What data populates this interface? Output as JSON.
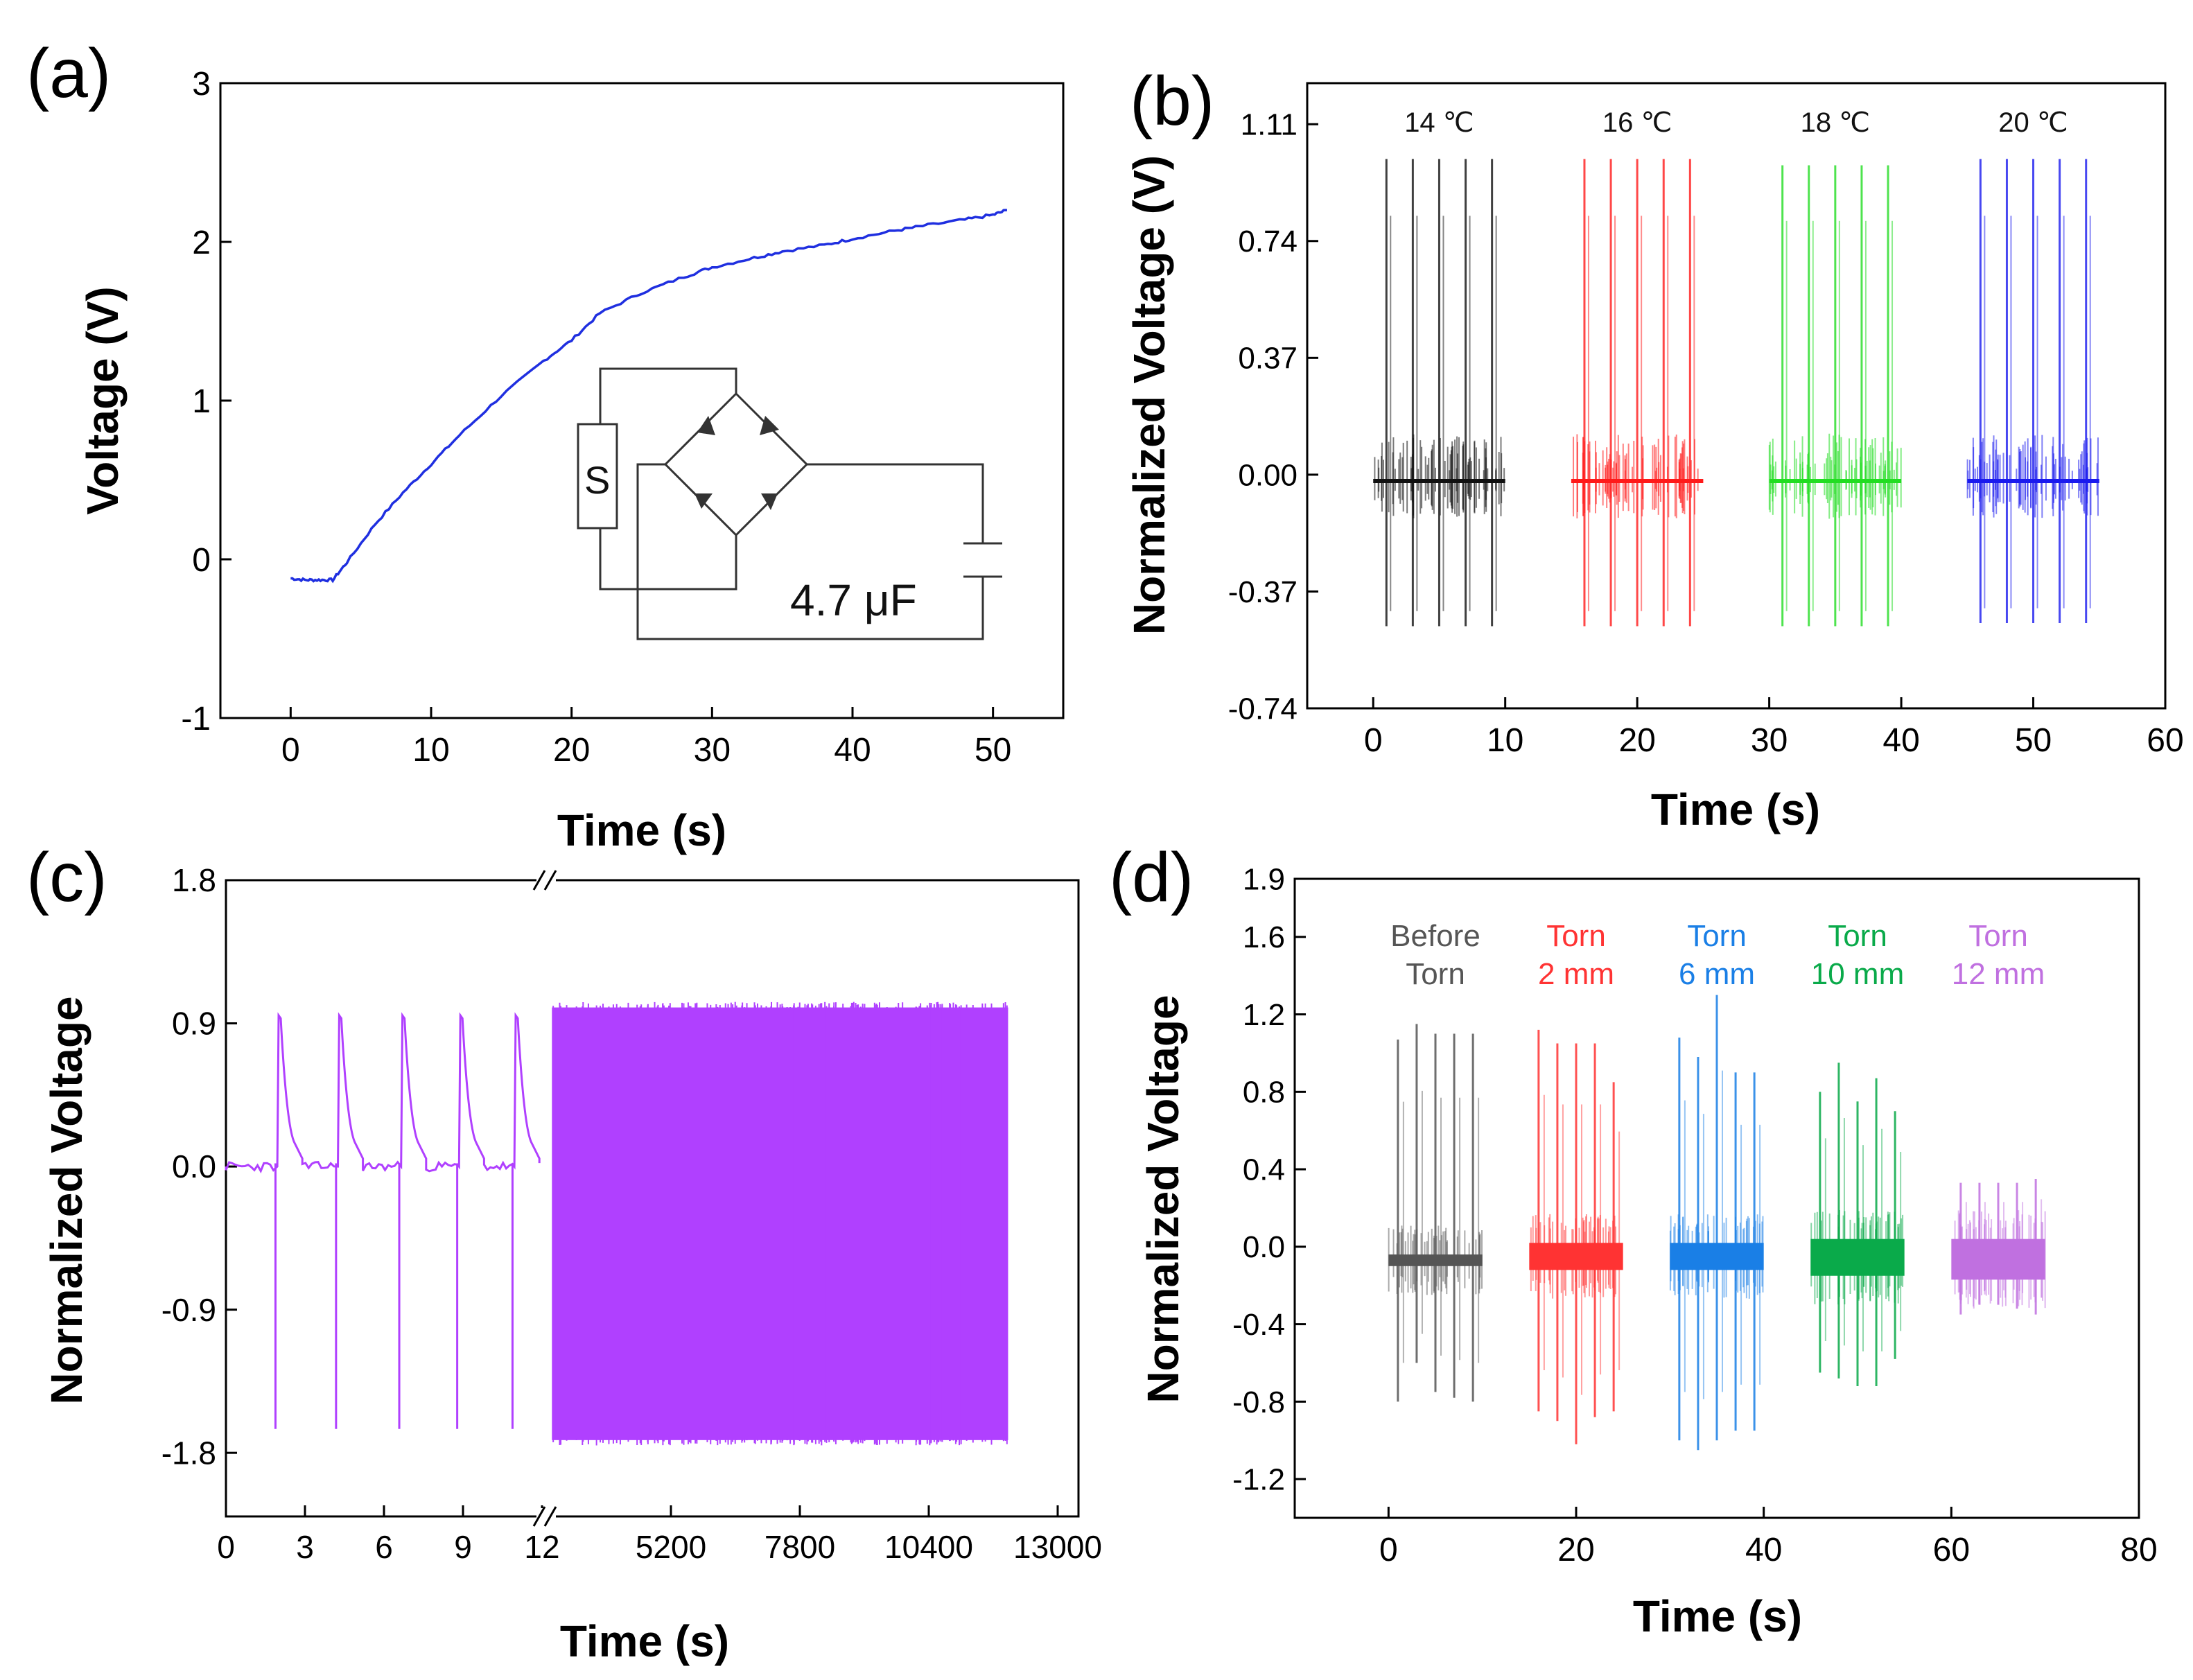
{
  "panel_labels": [
    "(a)",
    "(b)",
    "(c)",
    "(d)"
  ],
  "colors": {
    "a_line": "#1f2fe0",
    "b_14": "#111111",
    "b_16": "#ff1a1a",
    "b_18": "#22dd22",
    "b_20": "#1a1aee",
    "c_trace": "#b040ff",
    "d_before": "#555555",
    "d_2mm": "#ff3333",
    "d_6mm": "#1a7fe6",
    "d_10mm": "#0aaa4a",
    "d_12mm": "#c070e0"
  },
  "chart_data": [
    {
      "panel": "(a)",
      "type": "line",
      "xlabel": "Time (s)",
      "ylabel": "Voltage (V)",
      "xlim": [
        -5,
        55
      ],
      "ylim": [
        -1,
        3
      ],
      "xticks": [
        0,
        10,
        20,
        30,
        40,
        50
      ],
      "yticks": [
        -1,
        0,
        1,
        2,
        3
      ],
      "x": [
        0,
        1,
        2,
        3,
        4,
        6,
        8,
        10,
        12,
        15,
        18,
        20,
        22,
        25,
        28,
        30,
        33,
        35,
        38,
        40,
        43,
        45,
        48,
        50,
        51
      ],
      "y": [
        -0.12,
        -0.13,
        -0.13,
        -0.13,
        -0.02,
        0.22,
        0.42,
        0.6,
        0.78,
        1.03,
        1.25,
        1.38,
        1.55,
        1.68,
        1.78,
        1.84,
        1.9,
        1.94,
        1.98,
        2.02,
        2.07,
        2.1,
        2.14,
        2.17,
        2.2
      ],
      "inset": {
        "type": "circuit",
        "components": [
          "S",
          "bridge-rectifier",
          "capacitor"
        ],
        "capacitor_label": "4.7 μF"
      }
    },
    {
      "panel": "(b)",
      "type": "line",
      "xlabel": "Time (s)",
      "ylabel": "Normalized Voltage (V)",
      "xlim": [
        -5,
        60
      ],
      "ylim": [
        -0.74,
        1.24
      ],
      "xticks": [
        0,
        10,
        20,
        30,
        40,
        50,
        60
      ],
      "yticks": [
        "1.11",
        "0.74",
        "0.37",
        "0.00",
        "-0.37",
        "-0.74"
      ],
      "groups": [
        {
          "label": "14 ℃",
          "x_range": [
            0,
            10
          ],
          "pulse_times": [
            1,
            3,
            5,
            7,
            9
          ],
          "peak": 1.0,
          "trough": -0.48,
          "baseline": -0.02,
          "color_key": "b_14"
        },
        {
          "label": "16 ℃",
          "x_range": [
            15,
            25
          ],
          "pulse_times": [
            16,
            18,
            20,
            22,
            24
          ],
          "peak": 1.0,
          "trough": -0.48,
          "baseline": -0.02,
          "color_key": "b_16"
        },
        {
          "label": "18 ℃",
          "x_range": [
            30,
            40
          ],
          "pulse_times": [
            31,
            33,
            35,
            37,
            39
          ],
          "peak": 0.98,
          "trough": -0.48,
          "baseline": -0.02,
          "color_key": "b_18"
        },
        {
          "label": "20 ℃",
          "x_range": [
            45,
            55
          ],
          "pulse_times": [
            46,
            48,
            50,
            52,
            54
          ],
          "peak": 1.0,
          "trough": -0.47,
          "baseline": -0.02,
          "color_key": "b_20"
        }
      ]
    },
    {
      "panel": "(c)",
      "type": "line",
      "xlabel": "Time (s)",
      "ylabel": "Normalized Voltage",
      "ylim": [
        -2.2,
        1.8
      ],
      "yticks": [
        "1.8",
        "0.9",
        "0.0",
        "-0.9",
        "-1.8"
      ],
      "broken_x_axis": true,
      "segment1": {
        "xlim": [
          0,
          12
        ],
        "xticks": [
          "0",
          "3",
          "6",
          "9",
          "12"
        ],
        "pulse_times": [
          2,
          4.3,
          6.7,
          8.9,
          11
        ],
        "peak": 0.95,
        "trough": -1.65,
        "baseline": 0.0
      },
      "segment2": {
        "xlim": [
          2600,
          13000
        ],
        "xticks": [
          "5200",
          "7800",
          "10400",
          "13000"
        ],
        "band_x": [
          2800,
          12000
        ],
        "band_top": 1.0,
        "band_bottom": -1.72
      }
    },
    {
      "panel": "(d)",
      "type": "line",
      "xlabel": "Time (s)",
      "ylabel": "Normalized Voltage",
      "xlim": [
        -10,
        80
      ],
      "ylim": [
        -1.4,
        1.9
      ],
      "xticks": [
        0,
        20,
        40,
        60,
        80
      ],
      "yticks": [
        "1.9",
        "1.6",
        "1.2",
        "0.8",
        "0.4",
        "0.0",
        "-0.4",
        "-0.8",
        "-1.2"
      ],
      "groups": [
        {
          "label_line1": "Before",
          "label_line2": "Torn",
          "x_range": [
            0,
            10
          ],
          "pulse_times": [
            1,
            3,
            5,
            7,
            9
          ],
          "peaks": [
            1.07,
            1.15,
            1.1,
            1.1,
            1.1
          ],
          "troughs": [
            -0.8,
            -0.6,
            -0.75,
            -0.78,
            -0.8
          ],
          "band": [
            -0.1,
            -0.04
          ],
          "color_key": "d_before"
        },
        {
          "label_line1": "Torn",
          "label_line2": "2 mm",
          "x_range": [
            15,
            25
          ],
          "pulse_times": [
            16,
            18,
            20,
            22,
            24
          ],
          "peaks": [
            1.12,
            1.05,
            1.05,
            1.05,
            0.85
          ],
          "troughs": [
            -0.85,
            -0.9,
            -1.02,
            -0.88,
            -0.85
          ],
          "band": [
            -0.12,
            0.02
          ],
          "color_key": "d_2mm"
        },
        {
          "label_line1": "Torn",
          "label_line2": "6 mm",
          "x_range": [
            30,
            40
          ],
          "pulse_times": [
            31,
            33,
            35,
            37,
            39
          ],
          "peaks": [
            1.08,
            0.98,
            1.3,
            0.9,
            0.9
          ],
          "troughs": [
            -1.0,
            -1.05,
            -1.0,
            -0.95,
            -0.95
          ],
          "band": [
            -0.12,
            0.02
          ],
          "color_key": "d_6mm"
        },
        {
          "label_line1": "Torn",
          "label_line2": "10 mm",
          "x_range": [
            45,
            55
          ],
          "pulse_times": [
            46,
            48,
            50,
            52,
            54
          ],
          "peaks": [
            0.8,
            0.95,
            0.75,
            0.87,
            0.7
          ],
          "troughs": [
            -0.65,
            -0.68,
            -0.72,
            -0.72,
            -0.58
          ],
          "band": [
            -0.15,
            0.04
          ],
          "color_key": "d_10mm"
        },
        {
          "label_line1": "Torn",
          "label_line2": "12 mm",
          "x_range": [
            60,
            70
          ],
          "pulse_times": [
            61,
            63,
            65,
            67,
            69
          ],
          "peaks": [
            0.33,
            0.33,
            0.33,
            0.33,
            0.35
          ],
          "troughs": [
            -0.35,
            -0.3,
            -0.3,
            -0.32,
            -0.35
          ],
          "band": [
            -0.17,
            0.04
          ],
          "color_key": "d_12mm"
        }
      ]
    }
  ]
}
